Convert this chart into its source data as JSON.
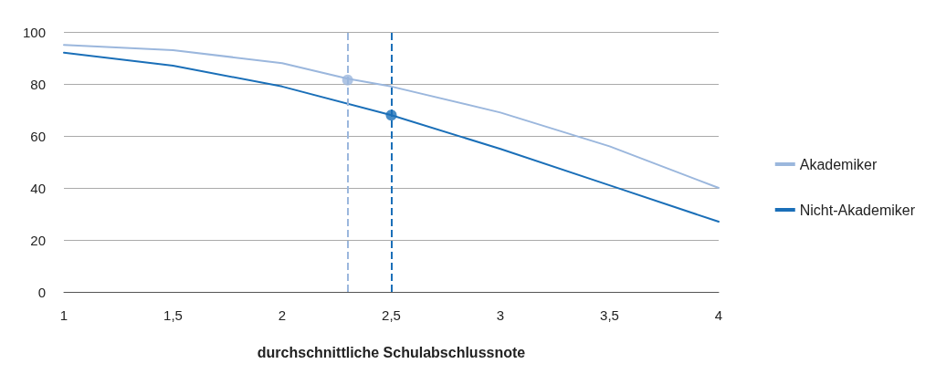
{
  "chart_data": {
    "type": "line",
    "xlabel": "durchschnittliche Schulabschlussnote",
    "xlim": [
      1,
      4
    ],
    "xticks": [
      1,
      {
        "value": 1.5,
        "label": "1,5"
      },
      2,
      {
        "value": 2.5,
        "label": "2,5"
      },
      3,
      {
        "value": 3.5,
        "label": "3,5"
      },
      4
    ],
    "ylim": [
      0,
      100
    ],
    "yticks": [
      0,
      20,
      40,
      60,
      80,
      100
    ],
    "grid": "y",
    "legend": "right",
    "series": [
      {
        "name": "Akademiker",
        "color": "#9bb7dd",
        "x": [
          1,
          1.5,
          2,
          2.3,
          2.5,
          3,
          3.5,
          4
        ],
        "values": [
          95,
          93,
          88,
          82,
          79,
          69,
          56,
          40
        ]
      },
      {
        "name": "Nicht-Akademiker",
        "color": "#1a6fb8",
        "x": [
          1,
          1.5,
          2,
          2.5,
          3,
          3.5,
          4
        ],
        "values": [
          92,
          87,
          79,
          68,
          55,
          41,
          27
        ]
      },
      {
        "type": "scatter",
        "marker": "circle",
        "color": "#9bb7dd",
        "x": [
          2.3
        ],
        "values": [
          81.5
        ]
      },
      {
        "type": "scatter",
        "marker": "circle",
        "color": "#1a6fb8",
        "x": [
          2.5
        ],
        "values": [
          68
        ]
      }
    ],
    "ref_lines": [
      {
        "axis": "x",
        "value": 2.3,
        "color": "#9bb7dd",
        "line_style": "dashed"
      },
      {
        "axis": "x",
        "value": 2.5,
        "color": "#1a6fb8",
        "line_style": "dashed"
      }
    ]
  }
}
